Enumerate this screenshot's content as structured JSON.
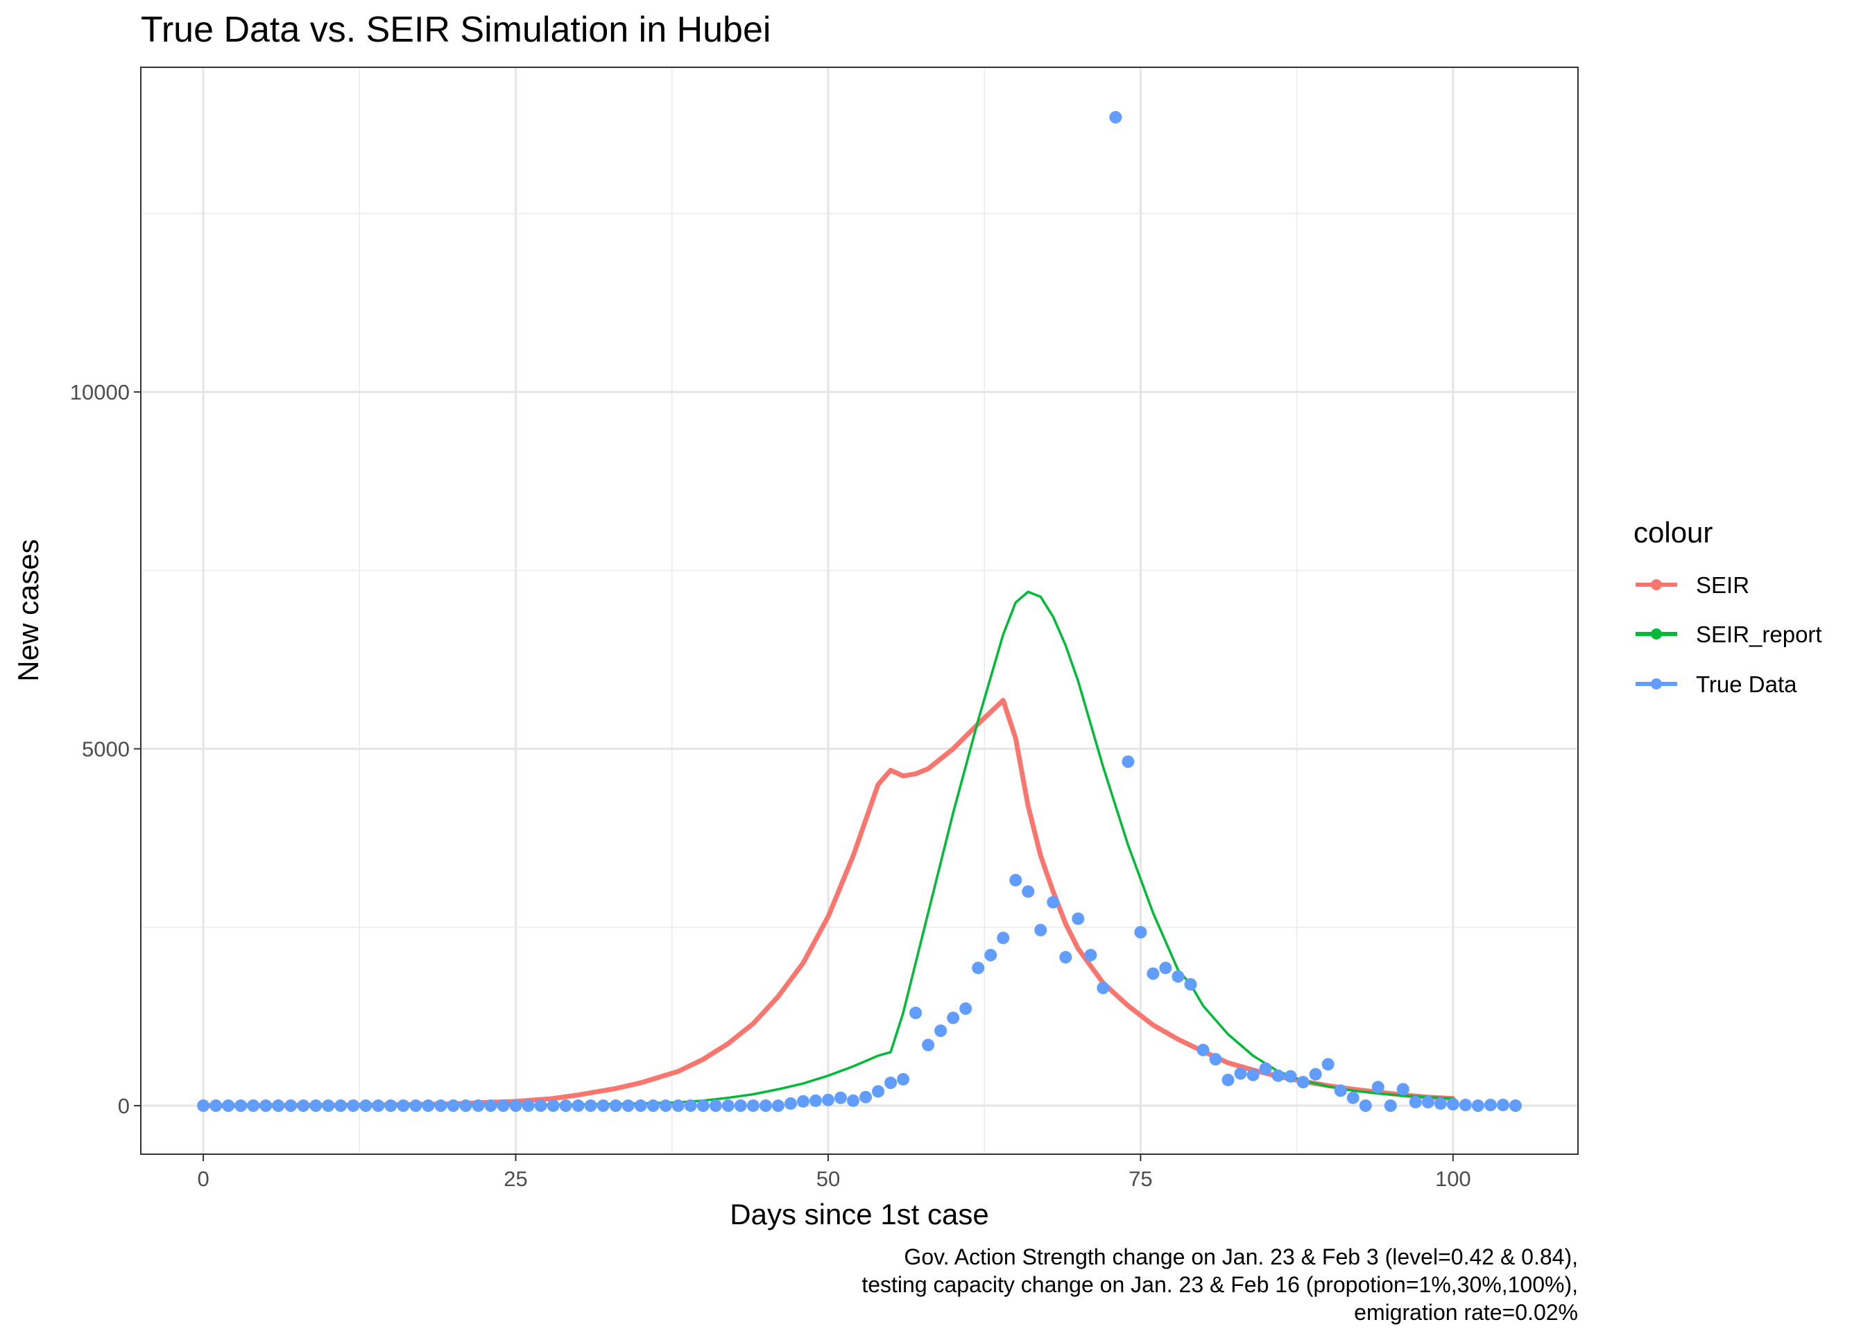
{
  "chart_data": {
    "type": "line",
    "title": "True Data vs. SEIR Simulation in Hubei",
    "xlabel": "Days since 1st case",
    "ylabel": "New cases",
    "xlim": [
      -5,
      110
    ],
    "ylim": [
      -680,
      14550
    ],
    "x_ticks": [
      0,
      25,
      50,
      75,
      100
    ],
    "y_ticks": [
      0,
      5000,
      10000
    ],
    "grid": true,
    "legend": {
      "title": "colour",
      "position": "right",
      "entries": [
        {
          "label": "SEIR",
          "color": "#F8766D"
        },
        {
          "label": "SEIR_report",
          "color": "#00BA38"
        },
        {
          "label": "True Data",
          "color": "#619CFF"
        }
      ]
    },
    "caption": [
      "Gov. Action Strength change on Jan. 23 & Feb 3 (level=0.42 & 0.84),",
      "testing capacity change on Jan. 23 & Feb 16 (propotion=1%,30%,100%),",
      "emigration rate=0.02%"
    ],
    "series": [
      {
        "name": "SEIR",
        "color": "#F8766D",
        "style": "line-thick",
        "x": [
          0,
          5,
          10,
          15,
          20,
          22,
          25,
          28,
          30,
          33,
          35,
          38,
          40,
          42,
          44,
          46,
          48,
          50,
          52,
          54,
          55,
          56,
          57,
          58,
          60,
          62,
          64,
          65,
          66,
          67,
          68,
          69,
          70,
          72,
          74,
          76,
          78,
          80,
          82,
          84,
          86,
          88,
          90,
          92,
          94,
          96,
          98,
          100
        ],
        "y": [
          0,
          2,
          5,
          12,
          25,
          40,
          60,
          100,
          150,
          240,
          320,
          480,
          650,
          870,
          1150,
          1530,
          2000,
          2650,
          3500,
          4500,
          4700,
          4620,
          4650,
          4720,
          5000,
          5350,
          5680,
          5150,
          4200,
          3500,
          3000,
          2550,
          2200,
          1720,
          1400,
          1130,
          930,
          760,
          600,
          500,
          410,
          340,
          280,
          230,
          190,
          150,
          120,
          100
        ]
      },
      {
        "name": "SEIR_report",
        "color": "#00BA38",
        "style": "line-thin",
        "x": [
          0,
          10,
          20,
          25,
          30,
          35,
          38,
          40,
          42,
          44,
          46,
          48,
          50,
          52,
          54,
          55,
          56,
          58,
          60,
          62,
          64,
          65,
          66,
          67,
          68,
          69,
          70,
          72,
          74,
          76,
          78,
          79,
          80,
          82,
          84,
          86,
          88,
          90,
          92,
          94,
          96,
          98,
          100
        ],
        "y": [
          0,
          2,
          5,
          8,
          15,
          30,
          45,
          70,
          110,
          160,
          230,
          310,
          420,
          550,
          700,
          750,
          1300,
          2700,
          4100,
          5400,
          6600,
          7050,
          7200,
          7130,
          6850,
          6450,
          5950,
          4750,
          3650,
          2700,
          1900,
          1700,
          1400,
          1000,
          700,
          480,
          350,
          270,
          210,
          170,
          140,
          120,
          100
        ]
      },
      {
        "name": "True Data",
        "color": "#619CFF",
        "style": "points",
        "x": [
          0,
          1,
          2,
          3,
          4,
          5,
          6,
          7,
          8,
          9,
          10,
          11,
          12,
          13,
          14,
          15,
          16,
          17,
          18,
          19,
          20,
          21,
          22,
          23,
          24,
          25,
          26,
          27,
          28,
          29,
          30,
          31,
          32,
          33,
          34,
          35,
          36,
          37,
          38,
          39,
          40,
          41,
          42,
          43,
          44,
          45,
          46,
          47,
          48,
          49,
          50,
          51,
          52,
          53,
          54,
          55,
          56,
          57,
          58,
          59,
          60,
          61,
          62,
          63,
          64,
          65,
          66,
          67,
          68,
          69,
          70,
          71,
          72,
          73,
          74,
          75,
          76,
          77,
          78,
          79,
          80,
          81,
          82,
          83,
          84,
          85,
          86,
          87,
          88,
          89,
          90,
          91,
          92,
          93,
          94,
          95,
          96,
          97,
          98,
          99,
          100,
          101,
          102,
          103,
          104,
          105
        ],
        "y": [
          0,
          0,
          0,
          0,
          0,
          0,
          0,
          0,
          0,
          0,
          0,
          0,
          0,
          0,
          0,
          0,
          0,
          0,
          0,
          0,
          0,
          0,
          0,
          0,
          0,
          0,
          0,
          0,
          0,
          0,
          0,
          0,
          0,
          0,
          0,
          0,
          0,
          0,
          0,
          0,
          0,
          0,
          0,
          0,
          0,
          0,
          0,
          30,
          60,
          70,
          80,
          110,
          70,
          120,
          200,
          320,
          370,
          1300,
          850,
          1050,
          1230,
          1360,
          1930,
          2110,
          2350,
          3160,
          3000,
          2460,
          2850,
          2080,
          2620,
          2110,
          1650,
          13850,
          4820,
          2430,
          1850,
          1930,
          1810,
          1700,
          780,
          650,
          360,
          450,
          430,
          520,
          420,
          410,
          330,
          440,
          580,
          210,
          110,
          0,
          260,
          0,
          230,
          50,
          50,
          30,
          20,
          10,
          0,
          10,
          10,
          0
        ]
      }
    ]
  }
}
